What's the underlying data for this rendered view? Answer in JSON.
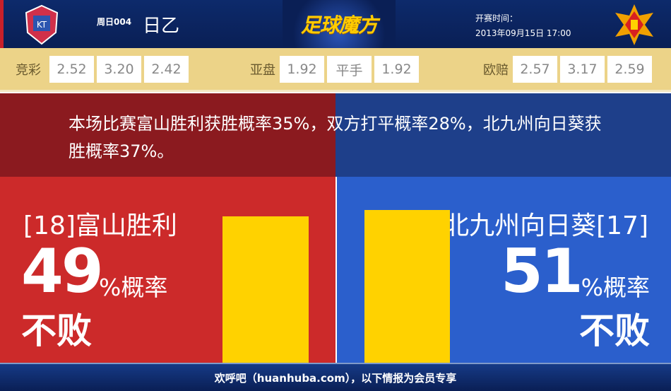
{
  "header": {
    "match_no": "周日004",
    "league": "日乙",
    "brand": "足球魔方",
    "time_label": "开赛时间：",
    "kickoff": "2013年09月15日 17:00",
    "home_logo": "home-crest-icon",
    "away_logo": "away-crest-icon"
  },
  "odds": {
    "jingcai": {
      "label": "竞彩",
      "values": [
        "2.52",
        "3.20",
        "2.42"
      ]
    },
    "yapan": {
      "label": "亚盘",
      "values": [
        "1.92",
        "平手",
        "1.92"
      ]
    },
    "oupei": {
      "label": "欧赔",
      "values": [
        "2.57",
        "3.17",
        "2.59"
      ]
    }
  },
  "summary": "本场比赛富山胜利获胜概率35%，双方打平概率28%，北九州向日葵获胜概率37%。",
  "home": {
    "name": "[18]富山胜利",
    "percent": "49",
    "unit": "%概率",
    "label": "不败",
    "value": 49,
    "color": "#cc2a2a"
  },
  "away": {
    "name": "北九州向日葵[17]",
    "percent": "51",
    "unit": "%概率",
    "label": "不败",
    "value": 51,
    "color": "#2b5fcc"
  },
  "bar_color": "#ffd200",
  "footer": "欢呼吧（huanhuba.com），以下情报为会员专享"
}
